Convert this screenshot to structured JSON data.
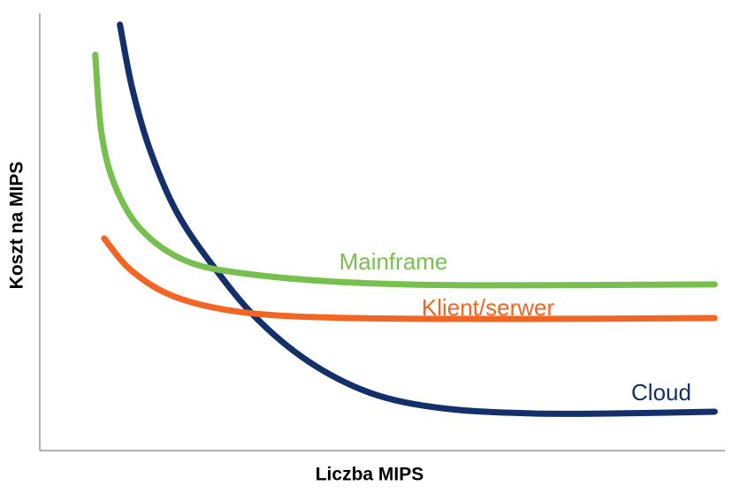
{
  "chart_data": {
    "type": "line",
    "x_label": "Liczba MIPS",
    "y_label": "Koszt na MIPS",
    "xlim": [
      0,
      100
    ],
    "ylim": [
      0,
      100
    ],
    "series": [
      {
        "name": "Cloud",
        "color": "#13306a",
        "x": [
          11.7,
          13.5,
          16.1,
          20.0,
          25.2,
          31.6,
          39.4,
          48.4,
          58.7,
          71.6,
          84.5,
          98.5
        ],
        "values": [
          97.4,
          82.8,
          68.7,
          54.5,
          42.4,
          30.3,
          20.2,
          13.1,
          9.7,
          8.5,
          8.5,
          8.9
        ]
      },
      {
        "name": "Mainframe",
        "color": "#77c04f",
        "x": [
          8.1,
          9.0,
          10.97,
          14.8,
          21.3,
          30.3,
          45.8,
          65.2,
          98.5
        ],
        "values": [
          90.5,
          72.7,
          60.6,
          50.5,
          43.4,
          40.4,
          38.4,
          37.8,
          38.0
        ]
      },
      {
        "name": "Klient/serwer",
        "color": "#f26522",
        "x": [
          9.4,
          13.5,
          20.0,
          30.3,
          45.8,
          71.6,
          98.5
        ],
        "values": [
          48.5,
          41.0,
          35.0,
          31.5,
          30.3,
          30.1,
          30.3
        ]
      }
    ]
  }
}
